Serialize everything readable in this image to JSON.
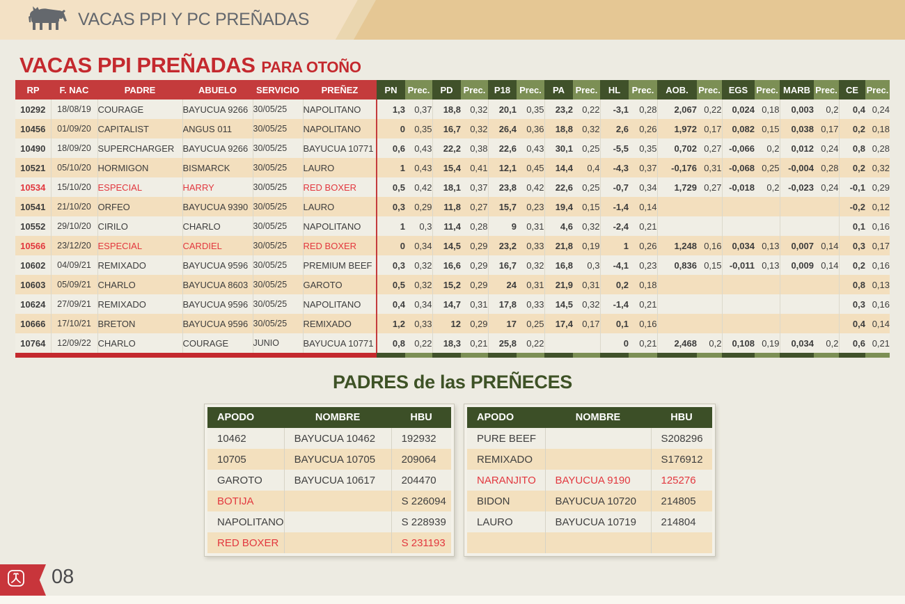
{
  "banner": {
    "title": "VACAS PPI Y PC PREÑADAS",
    "icon": "cow-icon"
  },
  "page_title": {
    "main": "VACAS PPI PREÑADAS",
    "sub": "PARA OTOÑO"
  },
  "main_table": {
    "headers_left": [
      "RP",
      "F. NAC",
      "PADRE",
      "ABUELO",
      "SERVICIO",
      "PREÑEZ"
    ],
    "metric_headers": [
      "PN",
      "PD",
      "P18",
      "PA",
      "HL",
      "AOB.",
      "EGS",
      "MARB",
      "CE"
    ],
    "prec_label": "Prec.",
    "rows": [
      {
        "rp": "10292",
        "fnac": "18/08/19",
        "padre": "COURAGE",
        "abuelo": "BAYUCUA 9266",
        "servicio": "30/05/25",
        "prenez": "NAPOLITANO",
        "red": false,
        "vals": [
          "1,3",
          "0,37",
          "18,8",
          "0,32",
          "20,1",
          "0,35",
          "23,2",
          "0,22",
          "-3,1",
          "0,28",
          "2,067",
          "0,22",
          "0,024",
          "0,18",
          "0,003",
          "0,2",
          "0,4",
          "0,24"
        ]
      },
      {
        "rp": "10456",
        "fnac": "01/09/20",
        "padre": "CAPITALIST",
        "abuelo": "ANGUS 011",
        "servicio": "30/05/25",
        "prenez": "NAPOLITANO",
        "red": false,
        "vals": [
          "0",
          "0,35",
          "16,7",
          "0,32",
          "26,4",
          "0,36",
          "18,8",
          "0,32",
          "2,6",
          "0,26",
          "1,972",
          "0,17",
          "0,082",
          "0,15",
          "0,038",
          "0,17",
          "0,2",
          "0,18"
        ]
      },
      {
        "rp": "10490",
        "fnac": "18/09/20",
        "padre": "SUPERCHARGER",
        "abuelo": "BAYUCUA 9266",
        "servicio": "30/05/25",
        "prenez": "BAYUCUA 10771",
        "red": false,
        "vals": [
          "0,6",
          "0,43",
          "22,2",
          "0,38",
          "22,6",
          "0,43",
          "30,1",
          "0,25",
          "-5,5",
          "0,35",
          "0,702",
          "0,27",
          "-0,066",
          "0,2",
          "0,012",
          "0,24",
          "0,8",
          "0,28"
        ]
      },
      {
        "rp": "10521",
        "fnac": "05/10/20",
        "padre": "HORMIGON",
        "abuelo": "BISMARCK",
        "servicio": "30/05/25",
        "prenez": "LAURO",
        "red": false,
        "vals": [
          "1",
          "0,43",
          "15,4",
          "0,41",
          "12,1",
          "0,45",
          "14,4",
          "0,4",
          "-4,3",
          "0,37",
          "-0,176",
          "0,31",
          "-0,068",
          "0,25",
          "-0,004",
          "0,28",
          "0,2",
          "0,32"
        ]
      },
      {
        "rp": "10534",
        "fnac": "15/10/20",
        "padre": "ESPECIAL",
        "abuelo": "HARRY",
        "servicio": "30/05/25",
        "prenez": "RED BOXER",
        "red": true,
        "vals": [
          "0,5",
          "0,42",
          "18,1",
          "0,37",
          "23,8",
          "0,42",
          "22,6",
          "0,25",
          "-0,7",
          "0,34",
          "1,729",
          "0,27",
          "-0,018",
          "0,2",
          "-0,023",
          "0,24",
          "-0,1",
          "0,29"
        ]
      },
      {
        "rp": "10541",
        "fnac": "21/10/20",
        "padre": "ORFEO",
        "abuelo": "BAYUCUA 9390",
        "servicio": "30/05/25",
        "prenez": "LAURO",
        "red": false,
        "vals": [
          "0,3",
          "0,29",
          "11,8",
          "0,27",
          "15,7",
          "0,23",
          "19,4",
          "0,15",
          "-1,4",
          "0,14",
          "",
          "",
          "",
          "",
          "",
          "",
          "-0,2",
          "0,12"
        ]
      },
      {
        "rp": "10552",
        "fnac": "29/10/20",
        "padre": "CIRILO",
        "abuelo": "CHARLO",
        "servicio": "30/05/25",
        "prenez": "NAPOLITANO",
        "red": false,
        "vals": [
          "1",
          "0,3",
          "11,4",
          "0,28",
          "9",
          "0,31",
          "4,6",
          "0,32",
          "-2,4",
          "0,21",
          "",
          "",
          "",
          "",
          "",
          "",
          "0,1",
          "0,16"
        ]
      },
      {
        "rp": "10566",
        "fnac": "23/12/20",
        "padre": "ESPECIAL",
        "abuelo": "CARDIEL",
        "servicio": "30/05/25",
        "prenez": "RED BOXER",
        "red": true,
        "vals": [
          "0",
          "0,34",
          "14,5",
          "0,29",
          "23,2",
          "0,33",
          "21,8",
          "0,19",
          "1",
          "0,26",
          "1,248",
          "0,16",
          "0,034",
          "0,13",
          "0,007",
          "0,14",
          "0,3",
          "0,17"
        ]
      },
      {
        "rp": "10602",
        "fnac": "04/09/21",
        "padre": "REMIXADO",
        "abuelo": "BAYUCUA 9596",
        "servicio": "30/05/25",
        "prenez": "PREMIUM BEEF",
        "red": false,
        "vals": [
          "0,3",
          "0,32",
          "16,6",
          "0,29",
          "16,7",
          "0,32",
          "16,8",
          "0,3",
          "-4,1",
          "0,23",
          "0,836",
          "0,15",
          "-0,011",
          "0,13",
          "0,009",
          "0,14",
          "0,2",
          "0,16"
        ]
      },
      {
        "rp": "10603",
        "fnac": "05/09/21",
        "padre": "CHARLO",
        "abuelo": "BAYUCUA 8603",
        "servicio": "30/05/25",
        "prenez": "GAROTO",
        "red": false,
        "vals": [
          "0,5",
          "0,32",
          "15,2",
          "0,29",
          "24",
          "0,31",
          "21,9",
          "0,31",
          "0,2",
          "0,18",
          "",
          "",
          "",
          "",
          "",
          "",
          "0,8",
          "0,13"
        ]
      },
      {
        "rp": "10624",
        "fnac": "27/09/21",
        "padre": "REMIXADO",
        "abuelo": "BAYUCUA 9596",
        "servicio": "30/05/25",
        "prenez": "NAPOLITANO",
        "red": false,
        "vals": [
          "0,4",
          "0,34",
          "14,7",
          "0,31",
          "17,8",
          "0,33",
          "14,5",
          "0,32",
          "-1,4",
          "0,21",
          "",
          "",
          "",
          "",
          "",
          "",
          "0,3",
          "0,16"
        ]
      },
      {
        "rp": "10666",
        "fnac": "17/10/21",
        "padre": "BRETON",
        "abuelo": "BAYUCUA 9596",
        "servicio": "30/05/25",
        "prenez": "REMIXADO",
        "red": false,
        "vals": [
          "1,2",
          "0,33",
          "12",
          "0,29",
          "17",
          "0,25",
          "17,4",
          "0,17",
          "0,1",
          "0,16",
          "",
          "",
          "",
          "",
          "",
          "",
          "0,4",
          "0,14"
        ]
      },
      {
        "rp": "10764",
        "fnac": "12/09/22",
        "padre": "CHARLO",
        "abuelo": "COURAGE",
        "servicio": "JUNIO",
        "prenez": "BAYUCUA 10771",
        "red": false,
        "vals": [
          "0,8",
          "0,22",
          "18,3",
          "0,21",
          "25,8",
          "0,22",
          "",
          "",
          "0",
          "0,21",
          "2,468",
          "0,2",
          "0,108",
          "0,19",
          "0,034",
          "0,2",
          "0,6",
          "0,21"
        ]
      }
    ]
  },
  "padres_section": {
    "title": "PADRES de las PREÑECES",
    "headers": [
      "APODO",
      "NOMBRE",
      "HBU"
    ],
    "left_table": [
      {
        "apodo": "10462",
        "nombre": "BAYUCUA 10462",
        "hbu": "192932",
        "red_cols": []
      },
      {
        "apodo": "10705",
        "nombre": "BAYUCUA 10705",
        "hbu": "209064",
        "red_cols": []
      },
      {
        "apodo": "GAROTO",
        "nombre": "BAYUCUA 10617",
        "hbu": "204470",
        "red_cols": []
      },
      {
        "apodo": "BOTIJA",
        "nombre": "",
        "hbu": "S 226094",
        "red_cols": [
          "apodo"
        ]
      },
      {
        "apodo": "NAPOLITANO",
        "nombre": "",
        "hbu": "S 228939",
        "red_cols": []
      },
      {
        "apodo": "RED BOXER",
        "nombre": "",
        "hbu": "S 231193",
        "red_cols": [
          "apodo",
          "hbu"
        ]
      }
    ],
    "right_table": [
      {
        "apodo": "PURE BEEF",
        "nombre": "",
        "hbu": "S208296",
        "red_cols": []
      },
      {
        "apodo": "REMIXADO",
        "nombre": "",
        "hbu": "S176912",
        "red_cols": []
      },
      {
        "apodo": "NARANJITO",
        "nombre": "BAYUCUA 9190",
        "hbu": "125276",
        "red_cols": [
          "apodo",
          "nombre",
          "hbu"
        ]
      },
      {
        "apodo": "BIDON",
        "nombre": "BAYUCUA 10720",
        "hbu": "214805",
        "red_cols": []
      },
      {
        "apodo": "LAURO",
        "nombre": "BAYUCUA 10719",
        "hbu": "214804",
        "red_cols": []
      },
      {
        "apodo": "",
        "nombre": "",
        "hbu": "",
        "red_cols": []
      }
    ]
  },
  "footer": {
    "page_number": "08",
    "icon": "cattle-brand-icon"
  },
  "colors": {
    "banner_tan": "#E5C794",
    "banner_light": "#F3E1C5",
    "page_bg": "#EDEBE2",
    "title_red": "#C4292E",
    "header_red": "#C43B3C",
    "header_green_dark": "#40512A",
    "header_green_light": "#7C8F55",
    "row_light": "#F0EEE5",
    "row_wheat": "#F3DFBE",
    "highlight_red_text": "#E2373E",
    "padres_green": "#3E5226"
  }
}
